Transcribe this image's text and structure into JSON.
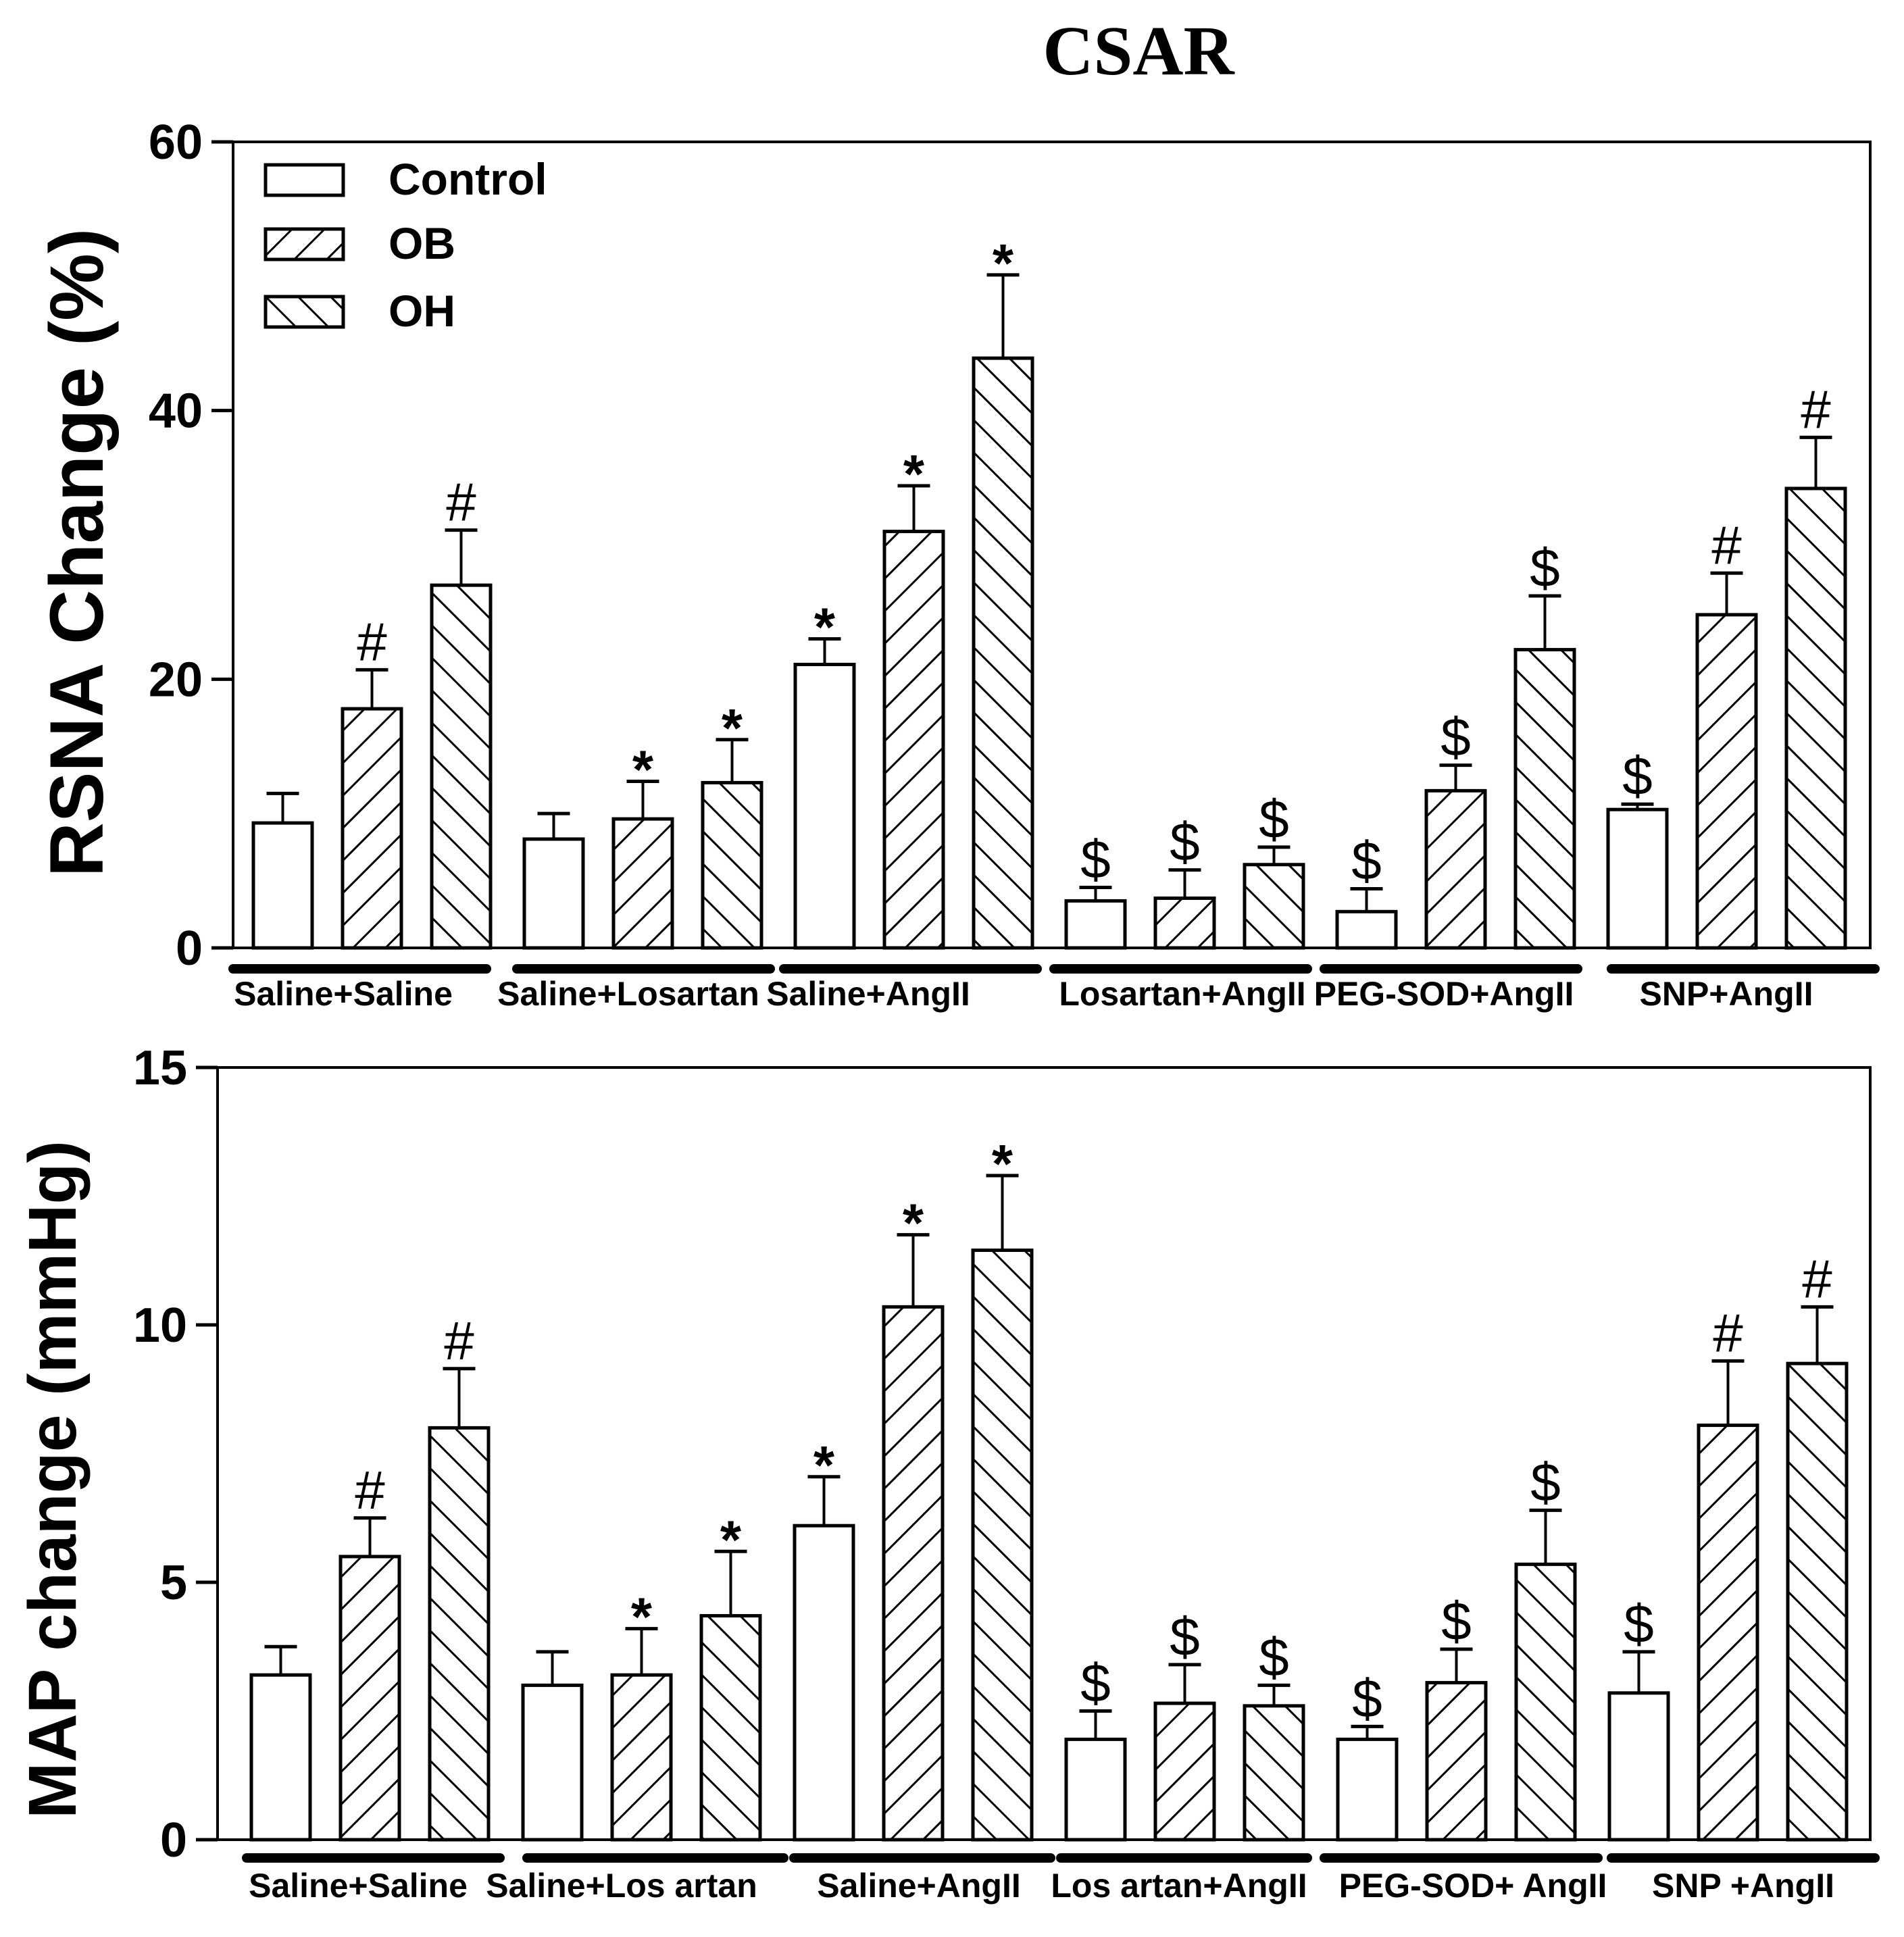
{
  "title": "CSAR",
  "legend": [
    {
      "label": "Control",
      "pattern": "open"
    },
    {
      "label": "OB",
      "pattern": "forward-hatch"
    },
    {
      "label": "OH",
      "pattern": "back-hatch"
    }
  ],
  "chart_data": [
    {
      "type": "bar",
      "title": "CSAR",
      "ylabel": "RSNA Change (%)",
      "xlabel": "",
      "ylim": [
        0,
        60
      ],
      "yticks": [
        0,
        20,
        40,
        60
      ],
      "categories": [
        "Saline+Saline",
        "Saline+Losartan",
        "Saline+AngII",
        "Losartan+AngII",
        "PEG-SOD+AngII",
        "SNP+AngII"
      ],
      "series": [
        {
          "name": "Control",
          "values": [
            9.3,
            8.1,
            21.1,
            3.5,
            2.7,
            10.3
          ],
          "errors": [
            2.2,
            1.9,
            1.9,
            1.0,
            1.7,
            0.4
          ],
          "marks": [
            "",
            "",
            "*",
            "$",
            "$",
            "$"
          ]
        },
        {
          "name": "OB",
          "values": [
            17.8,
            9.6,
            31.0,
            3.7,
            11.7,
            24.8
          ],
          "errors": [
            2.9,
            2.8,
            3.4,
            2.1,
            1.9,
            3.1
          ],
          "marks": [
            "#",
            "*",
            "*",
            "$",
            "$",
            "#"
          ]
        },
        {
          "name": "OH",
          "values": [
            27.0,
            12.3,
            43.9,
            6.2,
            22.2,
            34.2
          ],
          "errors": [
            4.1,
            3.2,
            6.2,
            1.3,
            4.0,
            3.8
          ],
          "marks": [
            "#",
            "*",
            "*",
            "$",
            "$",
            "#"
          ]
        }
      ]
    },
    {
      "type": "bar",
      "title": "",
      "ylabel": "MAP change (mmHg)",
      "xlabel": "",
      "ylim": [
        0,
        15
      ],
      "yticks": [
        0,
        5,
        10,
        15
      ],
      "categories": [
        "Saline+Saline",
        "Saline+Los artan",
        "Saline+AngII",
        "Los artan+AngII",
        "PEG-SOD+ AngII",
        "SNP +AngII"
      ],
      "series": [
        {
          "name": "Control",
          "values": [
            3.2,
            3.0,
            6.1,
            1.95,
            1.95,
            2.85
          ],
          "errors": [
            0.55,
            0.65,
            0.95,
            0.55,
            0.25,
            0.8
          ],
          "marks": [
            "",
            "",
            "*",
            "$",
            "$",
            "$"
          ]
        },
        {
          "name": "OB",
          "values": [
            5.5,
            3.2,
            10.35,
            2.65,
            3.05,
            8.05
          ],
          "errors": [
            0.75,
            0.9,
            1.4,
            0.75,
            0.65,
            1.25
          ],
          "marks": [
            "#",
            "*",
            "*",
            "$",
            "$",
            "#"
          ]
        },
        {
          "name": "OH",
          "values": [
            8.0,
            4.35,
            11.45,
            2.6,
            5.35,
            9.25
          ],
          "errors": [
            1.15,
            1.25,
            1.45,
            0.4,
            1.05,
            1.1
          ],
          "marks": [
            "#",
            "*",
            "*",
            "$",
            "$",
            "#"
          ]
        }
      ]
    }
  ]
}
